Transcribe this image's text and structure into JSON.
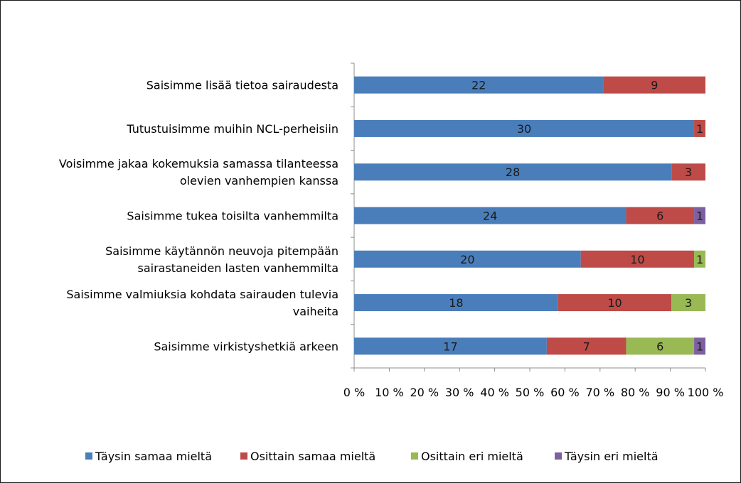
{
  "chart_data": {
    "type": "bar",
    "orientation": "horizontal",
    "stacked": "percent",
    "title": "",
    "xlabel": "",
    "ylabel": "",
    "xlim": [
      0,
      100
    ],
    "x_ticks": [
      "0 %",
      "10 %",
      "20 %",
      "30 %",
      "40 %",
      "50 %",
      "60 %",
      "70 %",
      "80 %",
      "90 %",
      "100 %"
    ],
    "grid": false,
    "legend_position": "bottom",
    "categories": [
      "Saisimme lisää tietoa sairaudesta",
      "Tutustuisimme muihin NCL-perheisiin",
      "Voisimme jakaa kokemuksia samassa tilanteessa olevien vanhempien kanssa",
      "Saisimme tukea toisilta vanhemmilta",
      "Saisimme käytännön neuvoja pitempään sairastaneiden lasten vanhemmilta",
      "Saisimme valmiuksia kohdata sairauden tulevia vaiheita",
      "Saisimme virkistyshetkiä arkeen"
    ],
    "category_lines": [
      [
        "Saisimme lisää tietoa sairaudesta"
      ],
      [
        "Tutustuisimme muihin NCL-perheisiin"
      ],
      [
        "Voisimme jakaa kokemuksia samassa tilanteessa",
        "olevien vanhempien kanssa"
      ],
      [
        "Saisimme tukea toisilta vanhemmilta"
      ],
      [
        "Saisimme käytännön neuvoja pitempään",
        "sairastaneiden lasten vanhemmilta"
      ],
      [
        "Saisimme valmiuksia kohdata sairauden tulevia",
        "vaiheita"
      ],
      [
        "Saisimme virkistyshetkiä arkeen"
      ]
    ],
    "series": [
      {
        "name": "Täysin samaa mieltä",
        "color": "#4a7ebb",
        "values": [
          22,
          30,
          28,
          24,
          20,
          18,
          17
        ]
      },
      {
        "name": "Osittain samaa mieltä",
        "color": "#be4b48",
        "values": [
          9,
          1,
          3,
          6,
          10,
          10,
          7
        ]
      },
      {
        "name": "Osittain eri mieltä",
        "color": "#98b954",
        "values": [
          0,
          0,
          0,
          0,
          1,
          3,
          6
        ]
      },
      {
        "name": "Täysin eri mieltä",
        "color": "#7d60a0",
        "values": [
          0,
          0,
          0,
          1,
          0,
          0,
          1
        ]
      }
    ]
  }
}
